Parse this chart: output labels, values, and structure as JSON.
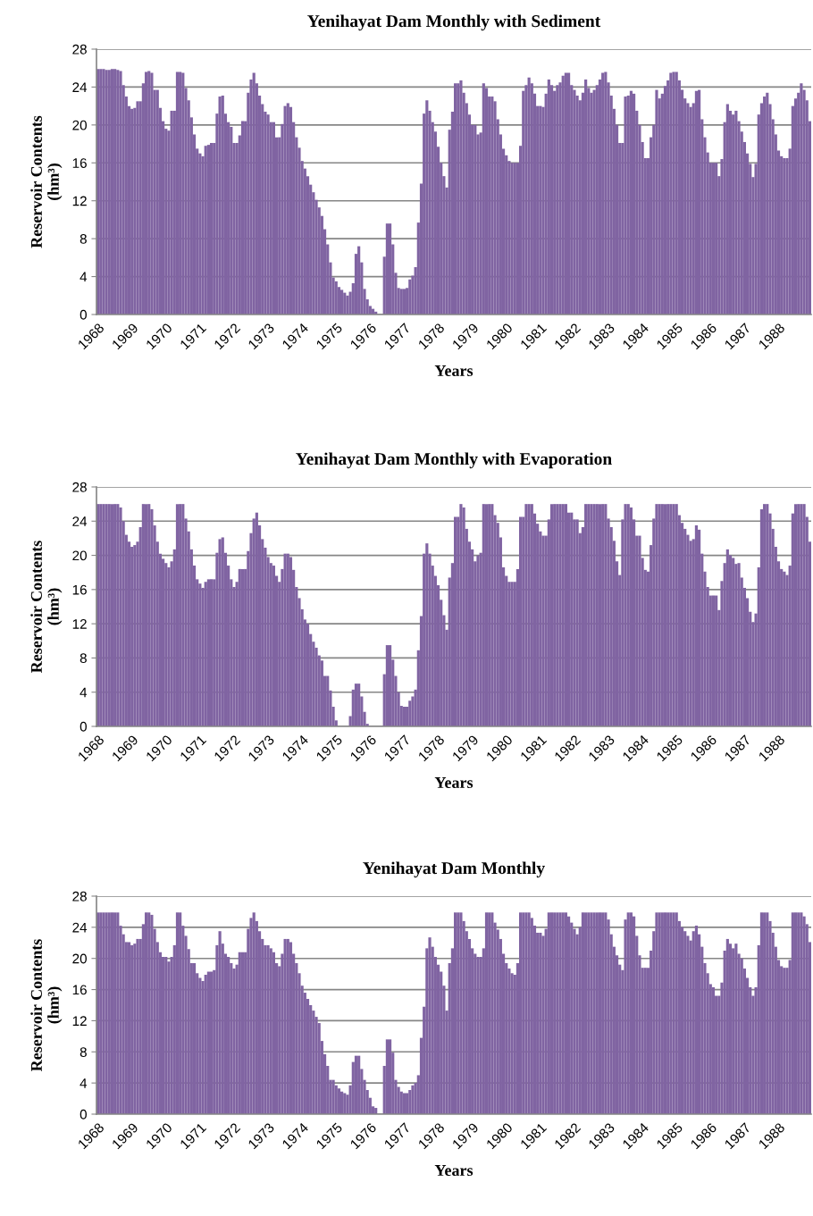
{
  "chart_data": [
    {
      "type": "bar",
      "title": "Yenihayat Dam Monthly with Sediment",
      "xlabel": "Years",
      "ylabel": "Reservoir Contents\n(hm³)",
      "ylim": [
        0,
        28
      ],
      "yticks": [
        0,
        4,
        8,
        12,
        16,
        20,
        24,
        28
      ],
      "grid": "y",
      "categories": [
        "1968",
        null,
        null,
        null,
        null,
        null,
        null,
        null,
        null,
        null,
        null,
        null,
        "1969",
        null,
        null,
        null,
        null,
        null,
        null,
        null,
        null,
        null,
        null,
        null,
        "1970",
        null,
        null,
        null,
        null,
        null,
        null,
        null,
        null,
        null,
        null,
        null,
        "1971",
        null,
        null,
        null,
        null,
        null,
        null,
        null,
        null,
        null,
        null,
        null,
        "1972",
        null,
        null,
        null,
        null,
        null,
        null,
        null,
        null,
        null,
        null,
        null,
        "1973",
        null,
        null,
        null,
        null,
        null,
        null,
        null,
        null,
        null,
        null,
        null,
        "1974",
        null,
        null,
        null,
        null,
        null,
        null,
        null,
        null,
        null,
        null,
        null,
        "1975",
        null,
        null,
        null,
        null,
        null,
        null,
        null,
        null,
        null,
        null,
        null,
        "1976",
        null,
        null,
        null,
        null,
        null,
        null,
        null,
        null,
        null,
        null,
        null,
        "1977",
        null,
        null,
        null,
        null,
        null,
        null,
        null,
        null,
        null,
        null,
        null,
        "1978",
        null,
        null,
        null,
        null,
        null,
        null,
        null,
        null,
        null,
        null,
        null,
        "1979",
        null,
        null,
        null,
        null,
        null,
        null,
        null,
        null,
        null,
        null,
        null,
        "1980",
        null,
        null,
        null,
        null,
        null,
        null,
        null,
        null,
        null,
        null,
        null,
        "1981",
        null,
        null,
        null,
        null,
        null,
        null,
        null,
        null,
        null,
        null,
        null,
        "1982",
        null,
        null,
        null,
        null,
        null,
        null,
        null,
        null,
        null,
        null,
        null,
        "1983",
        null,
        null,
        null,
        null,
        null,
        null,
        null,
        null,
        null,
        null,
        null,
        "1984",
        null,
        null,
        null,
        null,
        null,
        null,
        null,
        null,
        null,
        null,
        null,
        "1985",
        null,
        null,
        null,
        null,
        null,
        null,
        null,
        null,
        null,
        null,
        null,
        "1986",
        null,
        null,
        null,
        null,
        null,
        null,
        null,
        null,
        null,
        null,
        null,
        "1987",
        null,
        null,
        null,
        null,
        null,
        null,
        null,
        null,
        null,
        null,
        null,
        "1988",
        null,
        null,
        null,
        null,
        null,
        null,
        null,
        null,
        null,
        null,
        null
      ],
      "series": [
        {
          "color": "#8064a2",
          "values": [
            25.9,
            25.9,
            25.9,
            25.8,
            25.8,
            25.9,
            25.9,
            25.8,
            25.7,
            24.2,
            23.0,
            22.0,
            21.7,
            21.8,
            22.5,
            22.5,
            24.4,
            25.6,
            25.7,
            25.5,
            23.7,
            23.7,
            21.8,
            20.4,
            19.6,
            19.4,
            21.5,
            21.5,
            25.6,
            25.6,
            25.5,
            23.9,
            22.6,
            20.8,
            19.0,
            17.5,
            17.0,
            16.7,
            17.8,
            17.9,
            18.1,
            18.1,
            21.2,
            23.0,
            23.1,
            21.2,
            20.3,
            19.8,
            18.1,
            18.1,
            18.9,
            20.4,
            20.4,
            23.4,
            24.8,
            25.5,
            24.4,
            23.1,
            22.2,
            21.4,
            21.1,
            20.3,
            20.3,
            18.7,
            18.7,
            20.1,
            22.0,
            22.3,
            21.9,
            20.3,
            18.7,
            17.6,
            16.2,
            15.4,
            14.6,
            13.7,
            12.9,
            12.1,
            11.3,
            10.4,
            9.0,
            7.4,
            5.5,
            3.9,
            3.5,
            2.9,
            2.6,
            2.3,
            2.0,
            2.4,
            3.3,
            6.4,
            7.2,
            5.5,
            2.7,
            1.6,
            0.9,
            0.6,
            0.3,
            null,
            0.0,
            6.1,
            9.6,
            9.6,
            7.4,
            4.4,
            2.8,
            2.7,
            2.7,
            2.8,
            3.7,
            4.1,
            5.0,
            9.7,
            13.8,
            21.2,
            22.6,
            21.5,
            20.3,
            19.3,
            17.7,
            16.0,
            14.6,
            13.4,
            19.5,
            21.4,
            24.4,
            24.4,
            24.7,
            23.4,
            22.3,
            21.1,
            20.0,
            20.0,
            19.0,
            19.2,
            24.4,
            23.9,
            23.0,
            23.0,
            22.5,
            20.6,
            19.0,
            17.5,
            16.8,
            16.2,
            16.0,
            16.0,
            16.0,
            17.8,
            23.6,
            24.2,
            25.0,
            24.4,
            23.3,
            22.0,
            22.0,
            21.9,
            23.3,
            24.8,
            24.2,
            23.6,
            24.2,
            24.5,
            25.2,
            25.5,
            25.5,
            24.2,
            23.7,
            23.1,
            22.6,
            23.4,
            24.8,
            23.9,
            23.4,
            23.7,
            24.2,
            24.8,
            25.5,
            25.6,
            24.5,
            23.1,
            21.7,
            20.0,
            18.1,
            18.1,
            23.0,
            23.1,
            23.6,
            23.3,
            21.5,
            20.0,
            18.2,
            16.5,
            16.5,
            18.7,
            20.0,
            23.7,
            22.8,
            23.3,
            24.1,
            24.7,
            25.5,
            25.6,
            25.6,
            24.7,
            23.7,
            22.8,
            22.3,
            21.9,
            22.3,
            23.6,
            23.7,
            20.6,
            18.7,
            17.1,
            16.0,
            16.0,
            16.0,
            14.6,
            16.4,
            20.3,
            22.2,
            21.5,
            21.1,
            21.5,
            20.4,
            19.3,
            18.2,
            17.0,
            15.9,
            14.5,
            15.9,
            21.1,
            22.3,
            23.0,
            23.4,
            22.2,
            20.6,
            19.0,
            17.3,
            16.7,
            16.5,
            16.5,
            17.5,
            22.0,
            22.8,
            23.4,
            24.4,
            23.7,
            22.6,
            20.4
          ]
        }
      ]
    },
    {
      "type": "bar",
      "title": "Yenihayat Dam Monthly with Evaporation",
      "xlabel": "Years",
      "ylabel": "Reservoir Contents\n(hm³)",
      "ylim": [
        0,
        28
      ],
      "yticks": [
        0,
        4,
        8,
        12,
        16,
        20,
        24,
        28
      ],
      "grid": "y",
      "categories": [
        "1968",
        null,
        null,
        null,
        null,
        null,
        null,
        null,
        null,
        null,
        null,
        null,
        "1969",
        null,
        null,
        null,
        null,
        null,
        null,
        null,
        null,
        null,
        null,
        null,
        "1970",
        null,
        null,
        null,
        null,
        null,
        null,
        null,
        null,
        null,
        null,
        null,
        "1971",
        null,
        null,
        null,
        null,
        null,
        null,
        null,
        null,
        null,
        null,
        null,
        "1972",
        null,
        null,
        null,
        null,
        null,
        null,
        null,
        null,
        null,
        null,
        null,
        "1973",
        null,
        null,
        null,
        null,
        null,
        null,
        null,
        null,
        null,
        null,
        null,
        "1974",
        null,
        null,
        null,
        null,
        null,
        null,
        null,
        null,
        null,
        null,
        null,
        "1975",
        null,
        null,
        null,
        null,
        null,
        null,
        null,
        null,
        null,
        null,
        null,
        "1976",
        null,
        null,
        null,
        null,
        null,
        null,
        null,
        null,
        null,
        null,
        null,
        "1977",
        null,
        null,
        null,
        null,
        null,
        null,
        null,
        null,
        null,
        null,
        null,
        "1978",
        null,
        null,
        null,
        null,
        null,
        null,
        null,
        null,
        null,
        null,
        null,
        "1979",
        null,
        null,
        null,
        null,
        null,
        null,
        null,
        null,
        null,
        null,
        null,
        "1980",
        null,
        null,
        null,
        null,
        null,
        null,
        null,
        null,
        null,
        null,
        null,
        "1981",
        null,
        null,
        null,
        null,
        null,
        null,
        null,
        null,
        null,
        null,
        null,
        "1982",
        null,
        null,
        null,
        null,
        null,
        null,
        null,
        null,
        null,
        null,
        null,
        "1983",
        null,
        null,
        null,
        null,
        null,
        null,
        null,
        null,
        null,
        null,
        null,
        "1984",
        null,
        null,
        null,
        null,
        null,
        null,
        null,
        null,
        null,
        null,
        null,
        "1985",
        null,
        null,
        null,
        null,
        null,
        null,
        null,
        null,
        null,
        null,
        null,
        "1986",
        null,
        null,
        null,
        null,
        null,
        null,
        null,
        null,
        null,
        null,
        null,
        "1987",
        null,
        null,
        null,
        null,
        null,
        null,
        null,
        null,
        null,
        null,
        null,
        "1988",
        null,
        null,
        null,
        null,
        null,
        null,
        null,
        null,
        null,
        null,
        null
      ],
      "series": [
        {
          "color": "#8064a2",
          "values": [
            26.0,
            26.0,
            26.0,
            26.0,
            26.0,
            26.0,
            26.0,
            26.0,
            25.6,
            24.0,
            22.4,
            21.6,
            21.0,
            21.2,
            21.6,
            23.3,
            26.0,
            26.0,
            26.0,
            25.4,
            23.5,
            21.6,
            20.2,
            19.6,
            19.1,
            18.6,
            19.3,
            20.7,
            26.0,
            26.0,
            26.0,
            24.3,
            22.8,
            20.7,
            18.8,
            17.2,
            16.7,
            16.2,
            16.9,
            17.2,
            17.2,
            17.2,
            20.3,
            21.9,
            22.1,
            20.3,
            18.8,
            17.2,
            16.3,
            16.9,
            18.4,
            18.4,
            18.4,
            20.5,
            22.6,
            24.3,
            25.0,
            23.5,
            21.9,
            20.9,
            19.8,
            19.1,
            18.8,
            17.6,
            16.9,
            18.4,
            20.2,
            20.2,
            19.8,
            18.3,
            16.3,
            15.0,
            13.7,
            12.5,
            12.0,
            10.8,
            9.9,
            9.2,
            8.3,
            7.7,
            5.9,
            5.9,
            4.2,
            2.3,
            0.7,
            0,
            0,
            0,
            0,
            1.2,
            4.3,
            5.0,
            5.0,
            3.5,
            1.7,
            0.3,
            0,
            0,
            0,
            0,
            0,
            6.1,
            9.5,
            9.5,
            7.8,
            5.9,
            4.0,
            2.4,
            2.3,
            2.3,
            3.0,
            3.5,
            4.3,
            8.9,
            12.9,
            20.2,
            21.4,
            20.2,
            18.8,
            17.6,
            16.5,
            14.8,
            13.0,
            11.3,
            17.4,
            19.1,
            24.5,
            24.5,
            26.0,
            25.6,
            23.1,
            21.6,
            20.7,
            19.3,
            20.0,
            20.3,
            26.0,
            26.0,
            26.0,
            26.0,
            24.7,
            23.8,
            22.1,
            18.6,
            17.6,
            16.9,
            16.9,
            16.9,
            18.4,
            24.5,
            24.5,
            26.0,
            26.0,
            26.0,
            24.9,
            23.7,
            22.8,
            22.3,
            22.3,
            24.2,
            26.0,
            26.0,
            26.0,
            26.0,
            26.0,
            26.0,
            25.0,
            25.0,
            24.2,
            24.2,
            22.6,
            23.3,
            26.0,
            26.0,
            26.0,
            26.0,
            26.0,
            26.0,
            26.0,
            26.0,
            24.3,
            23.3,
            21.7,
            19.3,
            17.7,
            24.2,
            26.0,
            26.0,
            25.6,
            24.2,
            22.3,
            22.3,
            19.7,
            18.3,
            18.1,
            21.2,
            24.3,
            26.0,
            26.0,
            26.0,
            26.0,
            26.0,
            26.0,
            26.0,
            26.0,
            24.7,
            23.8,
            23.1,
            22.4,
            21.7,
            21.9,
            23.5,
            23.0,
            20.2,
            18.1,
            16.3,
            15.3,
            15.3,
            15.3,
            13.6,
            17.0,
            19.1,
            20.7,
            20.0,
            19.7,
            19.0,
            19.1,
            17.4,
            16.2,
            15.0,
            13.4,
            12.2,
            13.2,
            18.6,
            25.4,
            26.0,
            26.0,
            24.9,
            23.1,
            21.0,
            19.3,
            18.4,
            18.1,
            17.7,
            18.8,
            24.9,
            26.0,
            26.0,
            26.0,
            26.0,
            24.5,
            21.6
          ]
        }
      ]
    },
    {
      "type": "bar",
      "title": "Yenihayat Dam Monthly",
      "xlabel": "Years",
      "ylabel": "Reservoir Contents\n(hm³)",
      "ylim": [
        0,
        28
      ],
      "yticks": [
        0,
        4,
        8,
        12,
        16,
        20,
        24,
        28
      ],
      "grid": "y",
      "categories": [
        "1968",
        null,
        null,
        null,
        null,
        null,
        null,
        null,
        null,
        null,
        null,
        null,
        "1969",
        null,
        null,
        null,
        null,
        null,
        null,
        null,
        null,
        null,
        null,
        null,
        "1970",
        null,
        null,
        null,
        null,
        null,
        null,
        null,
        null,
        null,
        null,
        null,
        "1971",
        null,
        null,
        null,
        null,
        null,
        null,
        null,
        null,
        null,
        null,
        null,
        "1972",
        null,
        null,
        null,
        null,
        null,
        null,
        null,
        null,
        null,
        null,
        null,
        "1973",
        null,
        null,
        null,
        null,
        null,
        null,
        null,
        null,
        null,
        null,
        null,
        "1974",
        null,
        null,
        null,
        null,
        null,
        null,
        null,
        null,
        null,
        null,
        null,
        "1975",
        null,
        null,
        null,
        null,
        null,
        null,
        null,
        null,
        null,
        null,
        null,
        "1976",
        null,
        null,
        null,
        null,
        null,
        null,
        null,
        null,
        null,
        null,
        null,
        "1977",
        null,
        null,
        null,
        null,
        null,
        null,
        null,
        null,
        null,
        null,
        null,
        "1978",
        null,
        null,
        null,
        null,
        null,
        null,
        null,
        null,
        null,
        null,
        null,
        "1979",
        null,
        null,
        null,
        null,
        null,
        null,
        null,
        null,
        null,
        null,
        null,
        "1980",
        null,
        null,
        null,
        null,
        null,
        null,
        null,
        null,
        null,
        null,
        null,
        "1981",
        null,
        null,
        null,
        null,
        null,
        null,
        null,
        null,
        null,
        null,
        null,
        "1982",
        null,
        null,
        null,
        null,
        null,
        null,
        null,
        null,
        null,
        null,
        null,
        "1983",
        null,
        null,
        null,
        null,
        null,
        null,
        null,
        null,
        null,
        null,
        null,
        "1984",
        null,
        null,
        null,
        null,
        null,
        null,
        null,
        null,
        null,
        null,
        null,
        "1985",
        null,
        null,
        null,
        null,
        null,
        null,
        null,
        null,
        null,
        null,
        null,
        "1986",
        null,
        null,
        null,
        null,
        null,
        null,
        null,
        null,
        null,
        null,
        null,
        "1987",
        null,
        null,
        null,
        null,
        null,
        null,
        null,
        null,
        null,
        null,
        null,
        "1988",
        null,
        null,
        null,
        null,
        null,
        null,
        null,
        null,
        null,
        null,
        null
      ],
      "series": [
        {
          "color": "#8064a2",
          "values": [
            25.9,
            25.9,
            25.9,
            25.9,
            25.9,
            25.9,
            25.9,
            25.9,
            24.2,
            23.1,
            22.1,
            22.1,
            21.7,
            21.9,
            22.5,
            22.5,
            24.4,
            25.9,
            25.9,
            25.6,
            23.8,
            22.1,
            20.8,
            20.2,
            20.2,
            19.6,
            20.2,
            21.7,
            25.9,
            25.9,
            24.2,
            22.9,
            21.2,
            19.4,
            19.4,
            18.1,
            17.5,
            17.1,
            17.9,
            18.3,
            18.3,
            18.5,
            21.7,
            23.5,
            21.9,
            20.6,
            20.2,
            19.4,
            18.7,
            19.2,
            20.8,
            20.8,
            20.8,
            23.8,
            25.2,
            25.9,
            24.8,
            23.5,
            22.5,
            21.7,
            21.7,
            21.3,
            20.8,
            19.4,
            19.0,
            20.6,
            22.5,
            22.5,
            22.1,
            20.6,
            19.4,
            18.1,
            16.5,
            15.6,
            14.8,
            14.0,
            13.3,
            12.5,
            11.7,
            9.4,
            7.7,
            6.2,
            4.4,
            4.4,
            3.7,
            3.3,
            2.9,
            2.7,
            2.5,
            3.7,
            6.7,
            7.5,
            7.5,
            5.8,
            4.4,
            3.1,
            2.1,
            1.0,
            0.8,
            null,
            0,
            6.2,
            9.6,
            9.6,
            7.9,
            4.4,
            3.5,
            2.9,
            2.7,
            2.7,
            3.1,
            3.7,
            4.0,
            5.0,
            9.8,
            13.8,
            21.3,
            22.7,
            21.5,
            20.2,
            19.2,
            18.3,
            16.5,
            13.3,
            19.4,
            21.3,
            25.9,
            25.9,
            25.9,
            24.8,
            23.5,
            22.5,
            21.3,
            20.6,
            20.2,
            20.2,
            21.3,
            25.9,
            25.9,
            25.9,
            24.6,
            23.7,
            22.5,
            20.6,
            19.4,
            18.7,
            18.1,
            17.9,
            19.4,
            25.9,
            25.9,
            25.9,
            25.9,
            25.2,
            24.2,
            23.3,
            23.3,
            22.9,
            23.8,
            25.9,
            25.9,
            25.9,
            25.9,
            25.9,
            25.9,
            25.9,
            25.4,
            24.6,
            23.8,
            23.1,
            24.0,
            25.9,
            25.9,
            25.9,
            25.9,
            25.9,
            25.9,
            25.9,
            25.9,
            25.9,
            25.0,
            23.1,
            21.5,
            20.4,
            19.2,
            18.5,
            25.0,
            25.9,
            25.9,
            25.4,
            22.9,
            20.4,
            18.8,
            18.8,
            18.8,
            21.0,
            23.5,
            25.9,
            25.9,
            25.9,
            25.9,
            25.9,
            25.9,
            25.9,
            25.9,
            24.8,
            24.0,
            23.5,
            22.9,
            22.3,
            23.5,
            24.2,
            23.1,
            21.5,
            19.4,
            18.1,
            16.7,
            16.3,
            15.2,
            15.2,
            16.9,
            21.0,
            22.5,
            21.9,
            21.3,
            21.9,
            20.6,
            20.0,
            18.7,
            17.5,
            16.3,
            15.2,
            16.3,
            21.7,
            25.9,
            25.9,
            25.9,
            24.8,
            23.3,
            21.5,
            19.8,
            19.0,
            18.8,
            18.8,
            19.8,
            25.9,
            25.9,
            25.9,
            25.9,
            25.4,
            24.4,
            22.1
          ]
        }
      ]
    }
  ]
}
